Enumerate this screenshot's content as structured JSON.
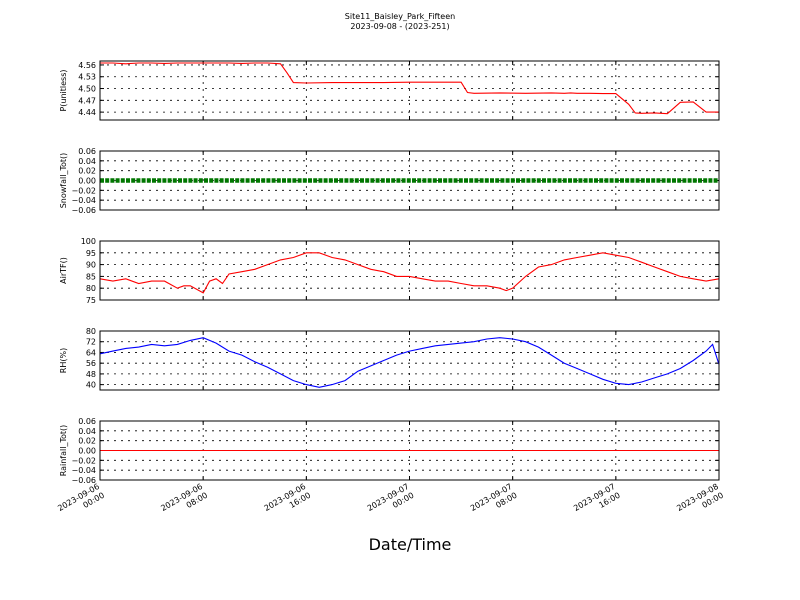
{
  "figure": {
    "title": "Site11_Baisley_Park_Fifteen",
    "subtitle": "2023-09-08 - (2023-251)",
    "xlabel": "Date/Time",
    "x_ticks": [
      {
        "l1": "2023-09-06",
        "l2": "00:00"
      },
      {
        "l1": "2023-09-06",
        "l2": "08:00"
      },
      {
        "l1": "2023-09-06",
        "l2": "16:00"
      },
      {
        "l1": "2023-09-07",
        "l2": "00:00"
      },
      {
        "l1": "2023-09-07",
        "l2": "08:00"
      },
      {
        "l1": "2023-09-07",
        "l2": "16:00"
      },
      {
        "l1": "2023-09-08",
        "l2": "00:00"
      }
    ],
    "colors": {
      "pressure": "#ff0000",
      "snowfall": "#007700",
      "airtemp": "#ff0000",
      "rh": "#0000ff",
      "rainfall": "#ff0000"
    }
  },
  "chart_data": [
    {
      "type": "line",
      "ylabel": "P(unitless)",
      "ylim": [
        4.42,
        4.57
      ],
      "yticks": [
        4.44,
        4.47,
        4.5,
        4.53,
        4.56
      ],
      "ytick_labels": [
        "4.44",
        "4.47",
        "4.50",
        "4.53",
        "4.56"
      ],
      "grid": true,
      "series": [
        {
          "color": "#ff0000",
          "x": [
            0,
            1,
            2,
            3,
            4,
            5,
            6,
            7,
            8,
            9,
            10,
            11,
            12,
            13,
            14,
            14.5,
            15,
            16,
            18,
            20,
            22,
            24,
            26,
            28,
            28.5,
            29,
            31,
            33,
            35,
            36,
            36.5,
            37,
            38,
            39,
            40,
            41,
            41.5,
            42,
            43,
            44,
            45,
            46,
            47,
            48
          ],
          "y": [
            4.565,
            4.565,
            4.563,
            4.565,
            4.565,
            4.564,
            4.565,
            4.565,
            4.565,
            4.565,
            4.565,
            4.564,
            4.565,
            4.565,
            4.563,
            4.54,
            4.515,
            4.514,
            4.515,
            4.515,
            4.515,
            4.516,
            4.516,
            4.516,
            4.49,
            4.488,
            4.489,
            4.488,
            4.489,
            4.488,
            4.489,
            4.488,
            4.488,
            4.487,
            4.487,
            4.46,
            4.438,
            4.437,
            4.438,
            4.436,
            4.465,
            4.466,
            4.44,
            4.44
          ]
        }
      ]
    },
    {
      "type": "scatter",
      "ylabel": "Snowfall_Tot()",
      "ylim": [
        -0.06,
        0.06
      ],
      "yticks": [
        -0.06,
        -0.04,
        -0.02,
        0.0,
        0.02,
        0.04,
        0.06
      ],
      "ytick_labels": [
        "−0.06",
        "−0.04",
        "−0.02",
        "0.00",
        "0.02",
        "0.04",
        "0.06"
      ],
      "grid": true,
      "series": [
        {
          "color": "#007700",
          "x": [
            0,
            48
          ],
          "y": [
            0,
            0
          ],
          "constant": true
        }
      ]
    },
    {
      "type": "line",
      "ylabel": "AirTF()",
      "ylim": [
        75,
        100
      ],
      "yticks": [
        75,
        80,
        85,
        90,
        95,
        100
      ],
      "ytick_labels": [
        "75",
        "80",
        "85",
        "90",
        "95",
        "100"
      ],
      "grid": true,
      "series": [
        {
          "color": "#ff0000",
          "x": [
            0,
            1,
            2,
            3,
            4,
            5,
            6,
            6.5,
            7,
            8,
            8.5,
            9,
            9.5,
            10,
            11,
            12,
            13,
            14,
            15,
            16,
            17,
            18,
            19,
            20,
            21,
            22,
            23,
            24,
            25,
            26,
            27,
            28,
            29,
            30,
            31,
            31.5,
            32,
            33,
            34,
            35,
            36,
            37,
            38,
            39,
            40,
            41,
            42,
            43,
            44,
            45,
            46,
            47,
            48
          ],
          "y": [
            84,
            83,
            84,
            82,
            83,
            83,
            80,
            81,
            81,
            78,
            83,
            84,
            82,
            86,
            87,
            88,
            90,
            92,
            93,
            95,
            95,
            93,
            92,
            90,
            88,
            87,
            85,
            85,
            84,
            83,
            83,
            82,
            81,
            81,
            80,
            79,
            80,
            85,
            89,
            90,
            92,
            93,
            94,
            95,
            94,
            93,
            91,
            89,
            87,
            85,
            84,
            83,
            84
          ]
        }
      ]
    },
    {
      "type": "line",
      "ylabel": "RH(%)",
      "ylim": [
        36,
        80
      ],
      "yticks": [
        40,
        48,
        56,
        64,
        72,
        80
      ],
      "ytick_labels": [
        "40",
        "48",
        "56",
        "64",
        "72",
        "80"
      ],
      "grid": true,
      "series": [
        {
          "color": "#0000ff",
          "x": [
            0,
            1,
            2,
            3,
            4,
            5,
            6,
            7,
            8,
            9,
            10,
            11,
            12,
            13,
            14,
            15,
            16,
            17,
            18,
            19,
            20,
            21,
            22,
            23,
            24,
            25,
            26,
            27,
            28,
            29,
            30,
            31,
            32,
            33,
            34,
            35,
            36,
            37,
            38,
            39,
            40,
            41,
            42,
            43,
            44,
            45,
            46,
            47,
            47.5,
            48
          ],
          "y": [
            63,
            65,
            67,
            68,
            70,
            69,
            70,
            73,
            75,
            71,
            65,
            62,
            57,
            53,
            48,
            43,
            40,
            38,
            40,
            43,
            50,
            54,
            58,
            62,
            65,
            67,
            69,
            70,
            71,
            72,
            74,
            75,
            74,
            72,
            68,
            62,
            56,
            52,
            48,
            44,
            41,
            40,
            42,
            45,
            48,
            52,
            58,
            65,
            70,
            55
          ]
        }
      ]
    },
    {
      "type": "line",
      "ylabel": "Rainfall_Tot()",
      "ylim": [
        -0.06,
        0.06
      ],
      "yticks": [
        -0.06,
        -0.04,
        -0.02,
        0.0,
        0.02,
        0.04,
        0.06
      ],
      "ytick_labels": [
        "−0.06",
        "−0.04",
        "−0.02",
        "0.00",
        "0.02",
        "0.04",
        "0.06"
      ],
      "grid": true,
      "series": [
        {
          "color": "#ff0000",
          "x": [
            0,
            48
          ],
          "y": [
            0,
            0
          ]
        }
      ]
    }
  ]
}
